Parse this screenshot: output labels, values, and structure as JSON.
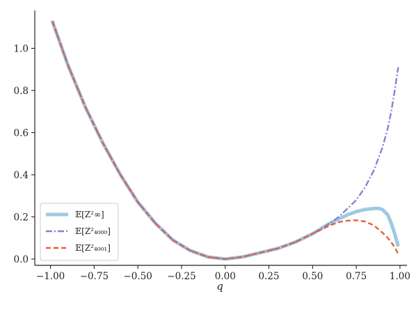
{
  "chart_data": {
    "type": "line",
    "title": "",
    "xlabel": "q",
    "ylabel": "",
    "xlim": [
      -1.09,
      1.04
    ],
    "ylim": [
      -0.03,
      1.18
    ],
    "xticks": [
      -1.0,
      -0.75,
      -0.5,
      -0.25,
      0.0,
      0.25,
      0.5,
      0.75,
      1.0
    ],
    "xtick_labels": [
      "−1.00",
      "−0.75",
      "−0.50",
      "−0.25",
      "0.00",
      "0.25",
      "0.50",
      "0.75",
      "1.00"
    ],
    "yticks": [
      0.0,
      0.2,
      0.4,
      0.6,
      0.8,
      1.0
    ],
    "ytick_labels": [
      "0.0",
      "0.2",
      "0.4",
      "0.6",
      "0.8",
      "1.0"
    ],
    "grid": false,
    "legend_position": "bottom-left",
    "series": [
      {
        "name": "𝔼[Z²∞]",
        "color": "#9ecae1",
        "style": "solid",
        "x": [
          -0.99,
          -0.9,
          -0.8,
          -0.7,
          -0.6,
          -0.5,
          -0.4,
          -0.3,
          -0.2,
          -0.1,
          0.0,
          0.1,
          0.2,
          0.3,
          0.4,
          0.5,
          0.6,
          0.65,
          0.7,
          0.75,
          0.8,
          0.85,
          0.88,
          0.9,
          0.93,
          0.95,
          0.97,
          0.99
        ],
        "y": [
          1.13,
          0.92,
          0.72,
          0.55,
          0.4,
          0.27,
          0.17,
          0.09,
          0.04,
          0.01,
          0.0,
          0.01,
          0.03,
          0.05,
          0.08,
          0.12,
          0.17,
          0.19,
          0.21,
          0.225,
          0.235,
          0.24,
          0.24,
          0.235,
          0.21,
          0.17,
          0.12,
          0.06
        ]
      },
      {
        "name": "𝔼[Z²₄₀₀₀]",
        "color": "#8a7fd6",
        "style": "dashdot",
        "x": [
          -0.99,
          -0.9,
          -0.8,
          -0.7,
          -0.6,
          -0.5,
          -0.4,
          -0.3,
          -0.2,
          -0.1,
          0.0,
          0.1,
          0.2,
          0.3,
          0.4,
          0.5,
          0.6,
          0.65,
          0.7,
          0.75,
          0.8,
          0.85,
          0.9,
          0.93,
          0.95,
          0.97,
          0.99
        ],
        "y": [
          1.13,
          0.92,
          0.72,
          0.55,
          0.4,
          0.27,
          0.17,
          0.09,
          0.04,
          0.01,
          0.0,
          0.01,
          0.03,
          0.05,
          0.08,
          0.12,
          0.17,
          0.2,
          0.24,
          0.28,
          0.34,
          0.42,
          0.53,
          0.62,
          0.7,
          0.8,
          0.91
        ]
      },
      {
        "name": "𝔼[Z²₄₀₀₁]",
        "color": "#e5603b",
        "style": "dashed",
        "x": [
          -0.99,
          -0.9,
          -0.8,
          -0.7,
          -0.6,
          -0.5,
          -0.4,
          -0.3,
          -0.2,
          -0.1,
          0.0,
          0.1,
          0.2,
          0.3,
          0.4,
          0.5,
          0.6,
          0.65,
          0.7,
          0.75,
          0.8,
          0.85,
          0.9,
          0.93,
          0.95,
          0.97,
          0.99
        ],
        "y": [
          1.13,
          0.92,
          0.72,
          0.55,
          0.4,
          0.27,
          0.17,
          0.09,
          0.04,
          0.01,
          0.0,
          0.01,
          0.03,
          0.05,
          0.08,
          0.12,
          0.16,
          0.175,
          0.182,
          0.184,
          0.178,
          0.16,
          0.125,
          0.1,
          0.08,
          0.055,
          0.025
        ]
      }
    ]
  }
}
